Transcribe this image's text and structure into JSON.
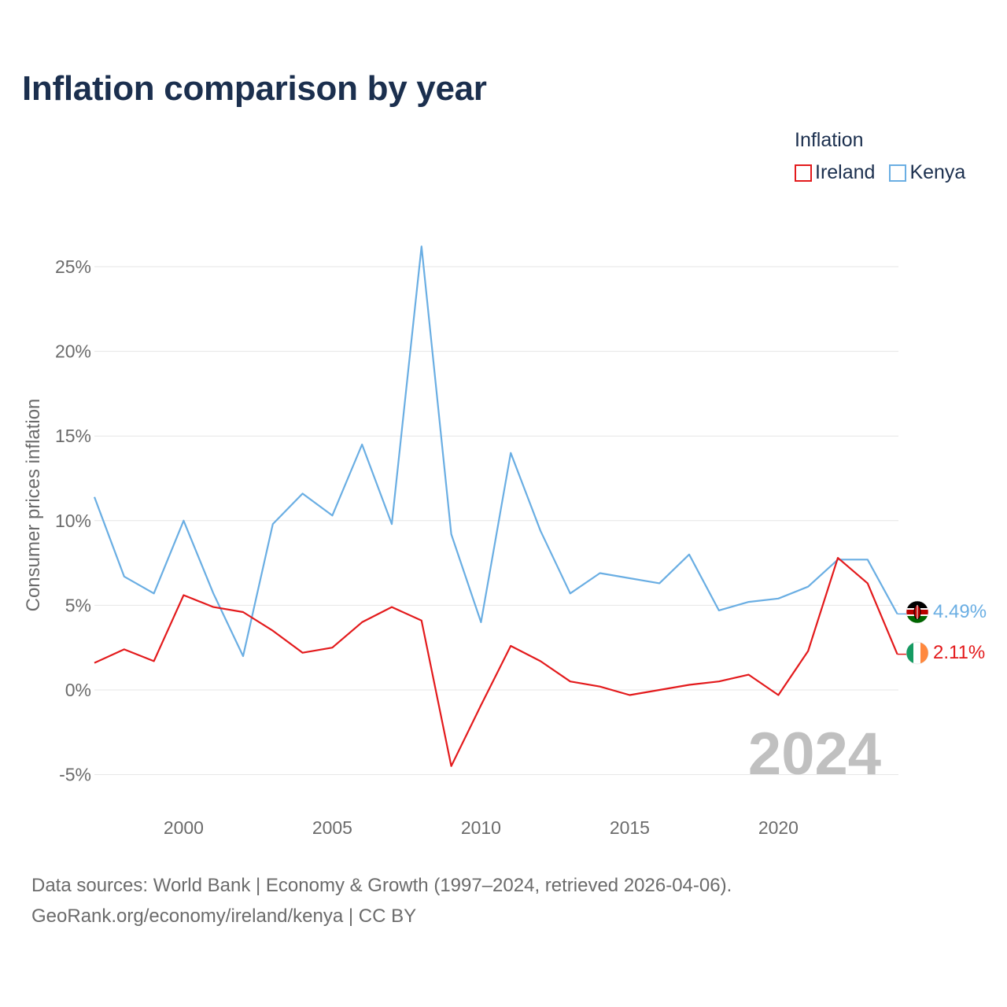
{
  "title": "Inflation comparison by year",
  "legend": {
    "title": "Inflation",
    "items": [
      {
        "name": "Ireland",
        "color": "#e31a1c"
      },
      {
        "name": "Kenya",
        "color": "#6aaee3"
      }
    ]
  },
  "sources": {
    "line1": "Data sources: World Bank | Economy & Growth (1997–2024, retrieved 2026-04-06).",
    "line2": "GeoRank.org/economy/ireland/kenya | CC BY"
  },
  "year_watermark": "2024",
  "chart_data": {
    "type": "line",
    "title": "Inflation comparison by year",
    "xlabel": "",
    "ylabel": "Consumer prices inflation",
    "xlim": [
      1997,
      2024
    ],
    "ylim": [
      -6,
      27
    ],
    "x_ticks": [
      2000,
      2005,
      2010,
      2015,
      2020
    ],
    "y_ticks": [
      -5,
      0,
      5,
      10,
      15,
      20,
      25
    ],
    "y_tick_labels": [
      "-5%",
      "0%",
      "5%",
      "10%",
      "15%",
      "20%",
      "25%"
    ],
    "grid": true,
    "legend_position": "top-right",
    "x": [
      1997,
      1998,
      1999,
      2000,
      2001,
      2002,
      2003,
      2004,
      2005,
      2006,
      2007,
      2008,
      2009,
      2010,
      2011,
      2012,
      2013,
      2014,
      2015,
      2016,
      2017,
      2018,
      2019,
      2020,
      2021,
      2022,
      2023,
      2024
    ],
    "series": [
      {
        "name": "Ireland",
        "color": "#e31a1c",
        "end_label": "2.11%",
        "values": [
          1.6,
          2.4,
          1.7,
          5.6,
          4.9,
          4.6,
          3.5,
          2.2,
          2.5,
          4.0,
          4.9,
          4.1,
          -4.5,
          -0.9,
          2.6,
          1.7,
          0.5,
          0.2,
          -0.3,
          0.0,
          0.3,
          0.5,
          0.9,
          -0.3,
          2.3,
          7.8,
          6.3,
          2.11
        ]
      },
      {
        "name": "Kenya",
        "color": "#6aaee3",
        "end_label": "4.49%",
        "values": [
          11.4,
          6.7,
          5.7,
          10.0,
          5.7,
          2.0,
          9.8,
          11.6,
          10.3,
          14.5,
          9.8,
          26.2,
          9.2,
          4.0,
          14.0,
          9.4,
          5.7,
          6.9,
          6.6,
          6.3,
          8.0,
          4.7,
          5.2,
          5.4,
          6.1,
          7.7,
          7.7,
          4.49
        ]
      }
    ]
  }
}
